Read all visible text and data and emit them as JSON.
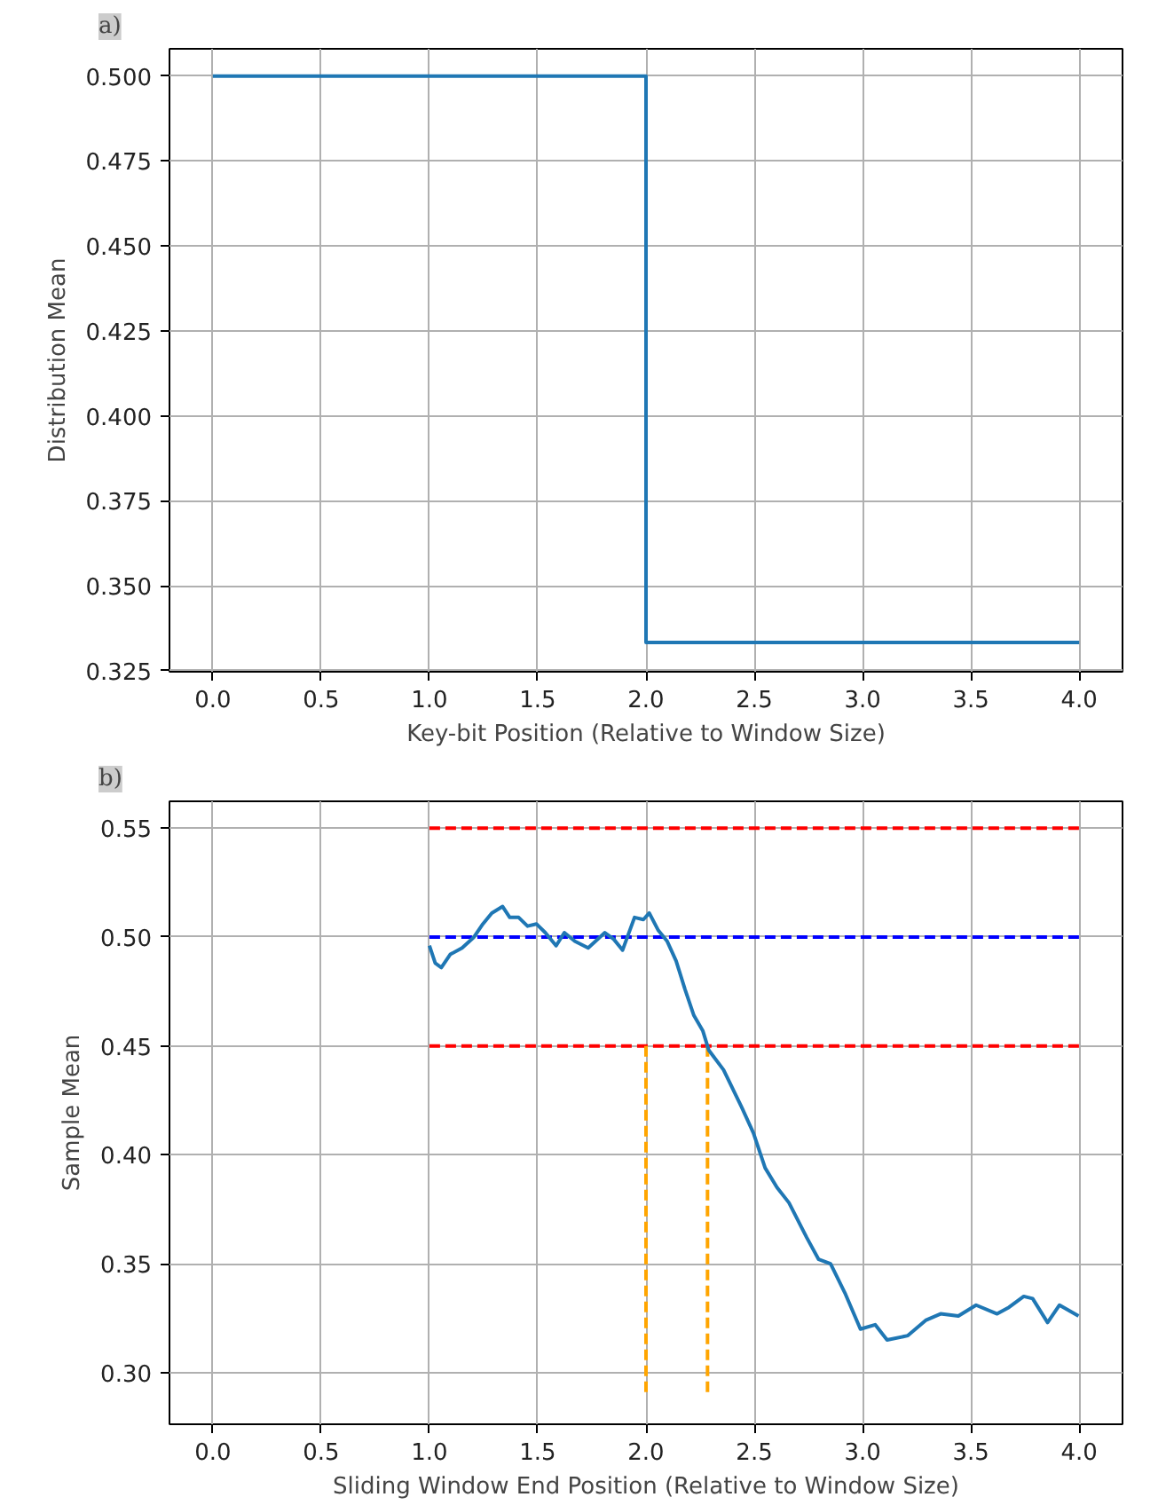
{
  "chart_data": [
    {
      "type": "step",
      "title": "a)",
      "xlabel": "Key-bit Position (Relative to Window Size)",
      "ylabel": "Distribution Mean",
      "x": [
        0,
        2,
        4
      ],
      "series": [
        {
          "color": "#1f77b4",
          "values": [
            0.5,
            0.3333,
            0.3333
          ]
        }
      ],
      "xlim": [
        -0.2,
        4.2
      ],
      "xticks": [
        {
          "value": 0,
          "label": "0.0"
        },
        0.5,
        {
          "value": 1,
          "label": "1.0"
        },
        1.5,
        {
          "value": 2,
          "label": "2.0"
        },
        2.5,
        {
          "value": 3,
          "label": "3.0"
        },
        3.5,
        {
          "value": 4,
          "label": "4.0"
        }
      ],
      "ylim": [
        0.3247,
        0.508
      ],
      "yticks": [
        {
          "value": 0.325,
          "label": "0.325"
        },
        {
          "value": 0.35,
          "label": "0.350"
        },
        {
          "value": 0.375,
          "label": "0.375"
        },
        {
          "value": 0.4,
          "label": "0.400"
        },
        {
          "value": 0.425,
          "label": "0.425"
        },
        {
          "value": 0.45,
          "label": "0.450"
        },
        {
          "value": 0.475,
          "label": "0.475"
        },
        {
          "value": 0.5,
          "label": "0.500"
        }
      ],
      "grid": true,
      "line_style": "solid"
    },
    {
      "type": "line",
      "title": "b)",
      "xlabel": "Sliding Window End Position (Relative to Window Size)",
      "ylabel": "Sample Mean",
      "series": [
        {
          "color": "#ff0000",
          "line_style": "dashed",
          "x": [
            1,
            4
          ],
          "values": [
            0.55,
            0.55
          ]
        },
        {
          "color": "#0000ff",
          "line_style": "dashed",
          "x": [
            1,
            4
          ],
          "values": [
            0.5,
            0.5
          ]
        },
        {
          "color": "#ff0000",
          "line_style": "dashed",
          "x": [
            1,
            4
          ],
          "values": [
            0.45,
            0.45
          ]
        },
        {
          "color": "#ffa500",
          "line_style": "dashed",
          "x": [
            2,
            2
          ],
          "values": [
            0.45,
            0.29
          ]
        },
        {
          "color": "#ffa500",
          "line_style": "dashed",
          "x": [
            2.284,
            2.284
          ],
          "values": [
            0.45,
            0.29
          ]
        },
        {
          "color": "#1f77b4",
          "line_style": "solid",
          "x": [
            1.0,
            1.027,
            1.055,
            1.096,
            1.151,
            1.206,
            1.247,
            1.288,
            1.338,
            1.371,
            1.412,
            1.453,
            1.494,
            1.535,
            1.585,
            1.623,
            1.672,
            1.733,
            1.81,
            1.851,
            1.892,
            1.947,
            1.988,
            2.015,
            2.057,
            2.098,
            2.139,
            2.18,
            2.221,
            2.262,
            2.29,
            2.358,
            2.441,
            2.496,
            2.55,
            2.605,
            2.66,
            2.742,
            2.797,
            2.852,
            2.921,
            2.99,
            3.058,
            3.113,
            3.209,
            3.291,
            3.36,
            3.442,
            3.524,
            3.621,
            3.676,
            3.744,
            3.785,
            3.854,
            3.909,
            3.997
          ],
          "values": [
            0.496,
            0.488,
            0.486,
            0.492,
            0.495,
            0.5,
            0.506,
            0.511,
            0.514,
            0.509,
            0.509,
            0.505,
            0.506,
            0.502,
            0.496,
            0.502,
            0.498,
            0.495,
            0.502,
            0.499,
            0.494,
            0.509,
            0.508,
            0.511,
            0.503,
            0.498,
            0.489,
            0.476,
            0.464,
            0.457,
            0.448,
            0.439,
            0.422,
            0.41,
            0.394,
            0.385,
            0.378,
            0.362,
            0.352,
            0.35,
            0.336,
            0.32,
            0.322,
            0.315,
            0.317,
            0.324,
            0.327,
            0.326,
            0.331,
            0.327,
            0.33,
            0.335,
            0.334,
            0.323,
            0.331,
            0.326
          ]
        }
      ],
      "xlim": [
        -0.2,
        4.2
      ],
      "xticks": [
        {
          "value": 0,
          "label": "0.0"
        },
        0.5,
        {
          "value": 1,
          "label": "1.0"
        },
        1.5,
        {
          "value": 2,
          "label": "2.0"
        },
        2.5,
        {
          "value": 3,
          "label": "3.0"
        },
        3.5,
        {
          "value": 4,
          "label": "4.0"
        }
      ],
      "ylim": [
        0.2763,
        0.5623
      ],
      "yticks": [
        {
          "value": 0.3,
          "label": "0.30"
        },
        0.35,
        {
          "value": 0.4,
          "label": "0.40"
        },
        0.45,
        {
          "value": 0.5,
          "label": "0.50"
        },
        0.55
      ],
      "grid": true
    }
  ]
}
